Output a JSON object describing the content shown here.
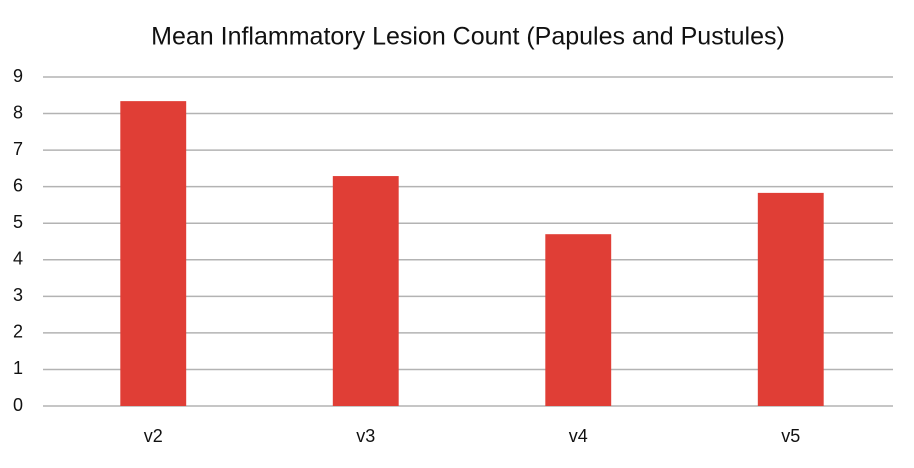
{
  "chart_data": {
    "type": "bar",
    "title": "Mean Inflammatory Lesion Count (Papules and Pustules)",
    "categories": [
      "v2",
      "v3",
      "v4",
      "v5"
    ],
    "values": [
      8.34,
      6.29,
      4.7,
      5.83
    ],
    "color": "#e03e36",
    "ylim": [
      0,
      9
    ],
    "yticks": [
      0,
      1,
      2,
      3,
      4,
      5,
      6,
      7,
      8,
      9
    ],
    "grid": true
  }
}
